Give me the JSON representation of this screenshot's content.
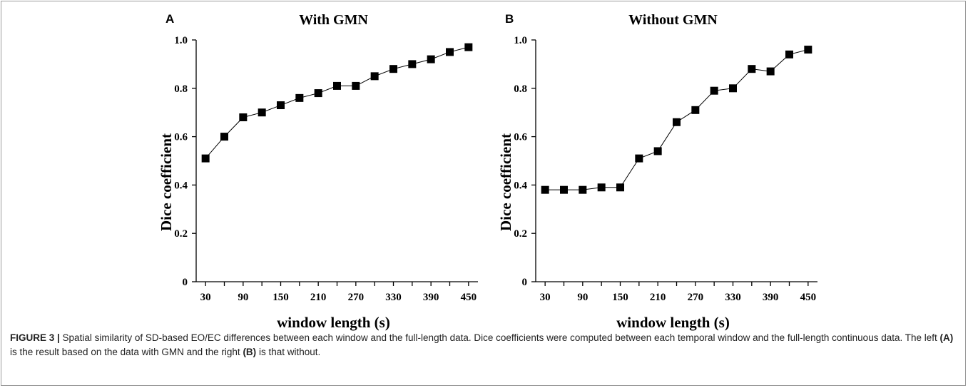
{
  "chart_data": [
    {
      "type": "line",
      "panel_label": "A",
      "title": "With GMN",
      "xlabel": "window length (s)",
      "ylabel": "Dice coefficient",
      "x": [
        30,
        60,
        90,
        120,
        150,
        180,
        210,
        240,
        270,
        300,
        330,
        360,
        390,
        420,
        450
      ],
      "series": [
        {
          "values": [
            0.51,
            0.6,
            0.68,
            0.7,
            0.73,
            0.76,
            0.78,
            0.81,
            0.81,
            0.85,
            0.88,
            0.9,
            0.92,
            0.95,
            0.97
          ]
        }
      ],
      "xlim": [
        15,
        465
      ],
      "ylim": [
        0,
        1.0
      ],
      "xticks": [
        30,
        90,
        150,
        210,
        270,
        330,
        390,
        450
      ],
      "yticks": [
        0,
        0.2,
        0.4,
        0.6,
        0.8,
        1.0
      ],
      "ytick_labels": [
        "0",
        "0.2",
        "0.4",
        "0.6",
        "0.8",
        "1.0"
      ],
      "marker": "square",
      "color": "#000000",
      "grid": false,
      "legend": "none"
    },
    {
      "type": "line",
      "panel_label": "B",
      "title": "Without GMN",
      "xlabel": "window length (s)",
      "ylabel": "Dice coefficient",
      "x": [
        30,
        60,
        90,
        120,
        150,
        180,
        210,
        240,
        270,
        300,
        330,
        360,
        390,
        420,
        450
      ],
      "series": [
        {
          "values": [
            0.38,
            0.38,
            0.38,
            0.39,
            0.39,
            0.51,
            0.54,
            0.66,
            0.71,
            0.79,
            0.8,
            0.88,
            0.87,
            0.94,
            0.96
          ]
        }
      ],
      "xlim": [
        15,
        465
      ],
      "ylim": [
        0,
        1.0
      ],
      "xticks": [
        30,
        90,
        150,
        210,
        270,
        330,
        390,
        450
      ],
      "yticks": [
        0,
        0.2,
        0.4,
        0.6,
        0.8,
        1.0
      ],
      "ytick_labels": [
        "0",
        "0.2",
        "0.4",
        "0.6",
        "0.8",
        "1.0"
      ],
      "marker": "square",
      "color": "#000000",
      "grid": false,
      "legend": "none"
    }
  ],
  "caption": {
    "label": "FIGURE 3 |",
    "text_1": " Spatial similarity of SD-based EO/EC differences between each window and the full-length data. Dice coefficients were computed between each temporal window and the full-length continuous data. The left ",
    "ref_a": "(A)",
    "text_2": " is the result based on the data with GMN and the right ",
    "ref_b": "(B)",
    "text_3": " is that without."
  }
}
